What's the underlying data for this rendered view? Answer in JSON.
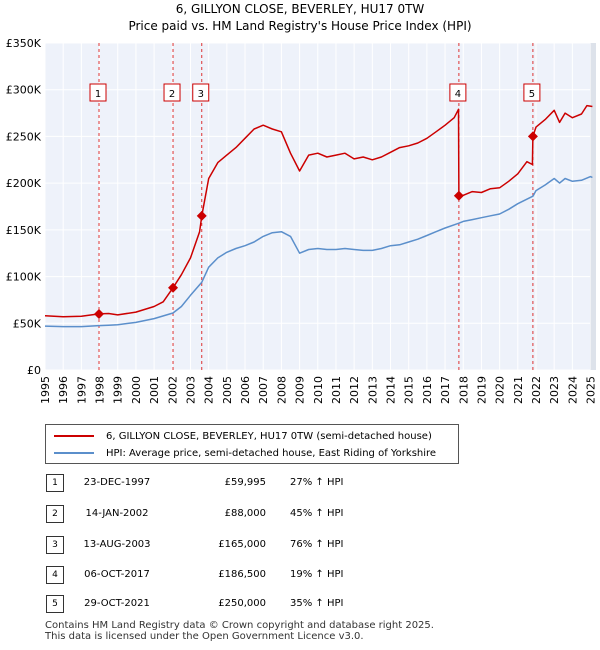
{
  "page": {
    "title_line1": "6, GILLYON CLOSE, BEVERLEY, HU17 0TW",
    "title_line2": "Price paid vs. HM Land Registry's House Price Index (HPI)"
  },
  "colors": {
    "property_line": "#cc0000",
    "hpi_line": "#5b8fcb",
    "plot_bg": "#eef2fa",
    "grid": "#ffffff"
  },
  "chart_data": {
    "type": "line",
    "title": "6, GILLYON CLOSE, BEVERLEY, HU17 0TW — Price paid vs. HM Land Registry's House Price Index (HPI)",
    "xlabel": "",
    "ylabel": "",
    "xlim": [
      1995,
      2025.3
    ],
    "ylim": [
      0,
      350000
    ],
    "x_ticks": [
      1995,
      1996,
      1997,
      1998,
      1999,
      2000,
      2001,
      2002,
      2003,
      2004,
      2005,
      2006,
      2007,
      2008,
      2009,
      2010,
      2011,
      2012,
      2013,
      2014,
      2015,
      2016,
      2017,
      2018,
      2019,
      2020,
      2021,
      2022,
      2023,
      2024,
      2025
    ],
    "y_ticks": [
      {
        "value": 0,
        "label": "£0"
      },
      {
        "value": 50000,
        "label": "£50K"
      },
      {
        "value": 100000,
        "label": "£100K"
      },
      {
        "value": 150000,
        "label": "£150K"
      },
      {
        "value": 200000,
        "label": "£200K"
      },
      {
        "value": 250000,
        "label": "£250K"
      },
      {
        "value": 300000,
        "label": "£300K"
      },
      {
        "value": 350000,
        "label": "£350K"
      }
    ],
    "grid": true,
    "series": [
      {
        "name": "6, GILLYON CLOSE, BEVERLEY, HU17 0TW (semi-detached house)",
        "color": "#cc0000",
        "x": [
          1995,
          1996,
          1997,
          1997.97,
          1998.5,
          1999,
          2000,
          2001,
          2001.5,
          2002.04,
          2002.5,
          2003,
          2003.5,
          2003.62,
          2004,
          2004.5,
          2005,
          2005.5,
          2006,
          2006.5,
          2007,
          2007.5,
          2008,
          2008.5,
          2009,
          2009.5,
          2010,
          2010.5,
          2011,
          2011.5,
          2012,
          2012.5,
          2013,
          2013.5,
          2014,
          2014.5,
          2015,
          2015.5,
          2016,
          2016.5,
          2017,
          2017.5,
          2017.74,
          2017.76,
          2018,
          2018.5,
          2019,
          2019.5,
          2020,
          2020.5,
          2021,
          2021.5,
          2021.8,
          2021.83,
          2022,
          2022.5,
          2023,
          2023.3,
          2023.6,
          2024,
          2024.5,
          2024.8,
          2025.1
        ],
        "values": [
          58000,
          57000,
          57500,
          59995,
          60500,
          59000,
          62000,
          68000,
          73000,
          88000,
          102000,
          120000,
          148000,
          165000,
          205000,
          222000,
          230000,
          238000,
          248000,
          258000,
          262000,
          258000,
          255000,
          232000,
          213000,
          230000,
          232000,
          228000,
          230000,
          232000,
          226000,
          228000,
          225000,
          228000,
          233000,
          238000,
          240000,
          243000,
          248000,
          255000,
          262000,
          270000,
          279000,
          186500,
          187000,
          191000,
          190000,
          194000,
          195000,
          202000,
          210000,
          223000,
          220000,
          250000,
          260000,
          268000,
          278000,
          265000,
          275000,
          270000,
          274000,
          283000,
          282000
        ]
      },
      {
        "name": "HPI: Average price, semi-detached house, East Riding of Yorkshire",
        "color": "#5b8fcb",
        "x": [
          1995,
          1996,
          1997,
          1997.97,
          1998.5,
          1999,
          2000,
          2001,
          2002.04,
          2002.5,
          2003,
          2003.62,
          2004,
          2004.5,
          2005,
          2005.5,
          2006,
          2006.5,
          2007,
          2007.5,
          2008,
          2008.5,
          2009,
          2009.5,
          2010,
          2010.5,
          2011,
          2011.5,
          2012,
          2012.5,
          2013,
          2013.5,
          2014,
          2014.5,
          2015,
          2015.5,
          2016,
          2016.5,
          2017,
          2017.74,
          2018,
          2018.5,
          2019,
          2019.5,
          2020,
          2020.5,
          2021,
          2021.83,
          2022,
          2022.5,
          2023,
          2023.3,
          2023.6,
          2024,
          2024.5,
          2025,
          2025.1
        ],
        "values": [
          47000,
          46500,
          46500,
          47500,
          48000,
          48500,
          51000,
          55000,
          61000,
          68000,
          80000,
          94000,
          110000,
          120000,
          126000,
          130000,
          133000,
          137000,
          143000,
          147000,
          148000,
          143000,
          125000,
          129000,
          130000,
          129000,
          129000,
          130000,
          129000,
          128000,
          128000,
          130000,
          133000,
          134000,
          137000,
          140000,
          144000,
          148000,
          152000,
          157000,
          159000,
          161000,
          163000,
          165000,
          167000,
          172000,
          178000,
          186000,
          192000,
          198000,
          205000,
          200000,
          205000,
          202000,
          203000,
          207000,
          206000
        ]
      }
    ],
    "sales": [
      {
        "marker": "1",
        "x": 1997.97,
        "value": 59995
      },
      {
        "marker": "2",
        "x": 2002.04,
        "value": 88000
      },
      {
        "marker": "3",
        "x": 2003.62,
        "value": 165000
      },
      {
        "marker": "4",
        "x": 2017.76,
        "value": 186500
      },
      {
        "marker": "5",
        "x": 2021.83,
        "value": 250000
      }
    ]
  },
  "legend": {
    "property_label": "6, GILLYON CLOSE, BEVERLEY, HU17 0TW (semi-detached house)",
    "hpi_label": "HPI: Average price, semi-detached house, East Riding of Yorkshire"
  },
  "transactions": [
    {
      "num": "1",
      "date": "23-DEC-1997",
      "price": "£59,995",
      "hpi": "27% ↑ HPI"
    },
    {
      "num": "2",
      "date": "14-JAN-2002",
      "price": "£88,000",
      "hpi": "45% ↑ HPI"
    },
    {
      "num": "3",
      "date": "13-AUG-2003",
      "price": "£165,000",
      "hpi": "76% ↑ HPI"
    },
    {
      "num": "4",
      "date": "06-OCT-2017",
      "price": "£186,500",
      "hpi": "19% ↑ HPI"
    },
    {
      "num": "5",
      "date": "29-OCT-2021",
      "price": "£250,000",
      "hpi": "35% ↑ HPI"
    }
  ],
  "footer": {
    "line1": "Contains HM Land Registry data © Crown copyright and database right 2025.",
    "line2": "This data is licensed under the Open Government Licence v3.0."
  }
}
